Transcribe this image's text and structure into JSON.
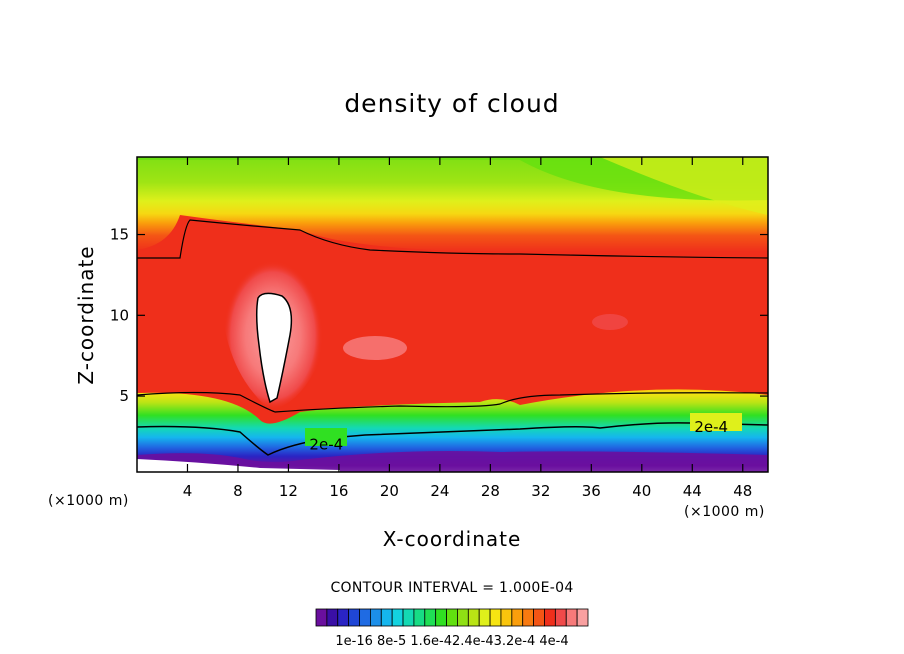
{
  "chart_data": {
    "type": "heatmap",
    "title": "density of cloud",
    "xlabel": "X-coordinate",
    "ylabel": "Z-coordinate",
    "x_unit_label_left": "(×1000 m)",
    "x_unit_label_right": "(×1000 m)",
    "xlim": [
      0,
      50
    ],
    "ylim": [
      0.3,
      19.8
    ],
    "x_ticks": [
      4,
      8,
      12,
      16,
      20,
      24,
      28,
      32,
      36,
      40,
      44,
      48
    ],
    "y_ticks": [
      5,
      10,
      15
    ],
    "contour_interval_text": "CONTOUR INTERVAL = 1.000E-04",
    "contour_line_labels": [
      {
        "text": "2e-4",
        "x": 15.0,
        "y": 2.0
      },
      {
        "text": "2e-4",
        "x": 45.5,
        "y": 3.1
      }
    ],
    "colorbar": {
      "tick_labels": [
        "1e-16",
        "8e-5",
        "1.6e-4",
        "2.4e-4",
        "3.2e-4",
        "4e-4"
      ],
      "tick_label_string": "1e-16 8e-5 1.6e-42.4e-43.2e-4 4e-4",
      "colors": [
        "#6a0f9e",
        "#3a0fa6",
        "#2a24c4",
        "#1f46d6",
        "#1f6be3",
        "#1c8fe9",
        "#15b6ee",
        "#13d3e0",
        "#14d9b3",
        "#17dc85",
        "#1fdf55",
        "#30e022",
        "#61e00f",
        "#8fe014",
        "#b9e415",
        "#dff01b",
        "#f6e412",
        "#f9c50d",
        "#fa9e0c",
        "#f87a10",
        "#f45515",
        "#ef2f1b",
        "#f04a4a",
        "#f77a7a",
        "#f9a0a0"
      ]
    },
    "colors": {
      "cloud_max_region": "#ffffff",
      "high_band": "#ef2f1b",
      "upper_green": "#61e00f",
      "lower_purple": "#6a0f9e"
    }
  }
}
